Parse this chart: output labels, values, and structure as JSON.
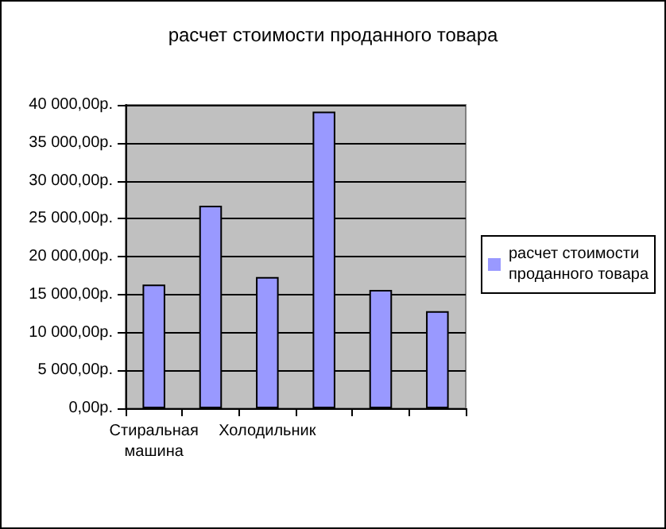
{
  "chart_data": {
    "type": "bar",
    "title": "расчет стоимости проданного товара",
    "categories": [
      "Стиральная машина",
      null,
      "Холодильник",
      null,
      null,
      null
    ],
    "series": [
      {
        "name": "расчет стоимости проданного товара",
        "color": "#9999ff",
        "values": [
          16300,
          26700,
          17300,
          39100,
          15600,
          12800
        ]
      }
    ],
    "ylim": [
      0,
      40000
    ],
    "yticks": [
      {
        "value": 0,
        "label": "0,00р."
      },
      {
        "value": 5000,
        "label": "5 000,00р."
      },
      {
        "value": 10000,
        "label": "10 000,00р."
      },
      {
        "value": 15000,
        "label": "15 000,00р."
      },
      {
        "value": 20000,
        "label": "20 000,00р."
      },
      {
        "value": 25000,
        "label": "25 000,00р."
      },
      {
        "value": 30000,
        "label": "30 000,00р."
      },
      {
        "value": 35000,
        "label": "35 000,00р."
      },
      {
        "value": 40000,
        "label": "40 000,00р."
      }
    ],
    "grid": "y",
    "legend": "right"
  }
}
